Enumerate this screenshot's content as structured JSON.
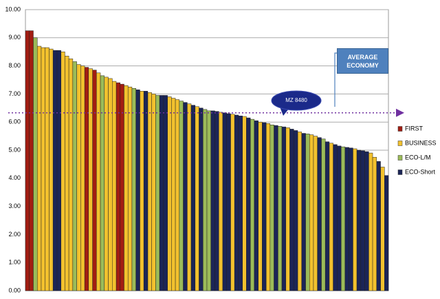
{
  "chart_data": {
    "type": "bar",
    "stacked": true,
    "categories": [
      null,
      null,
      null,
      null,
      null,
      null,
      null,
      null,
      null,
      null,
      null,
      null,
      null,
      null,
      null,
      null,
      null,
      null,
      null,
      null,
      null,
      null,
      null,
      null,
      null,
      null,
      null,
      null,
      null,
      null,
      null,
      null,
      null,
      null,
      null,
      null,
      null,
      null,
      null,
      null,
      null,
      null,
      null,
      null,
      null,
      null,
      null,
      null,
      null,
      null,
      null,
      null,
      null,
      null,
      null,
      null,
      null,
      null,
      null,
      null,
      null,
      null,
      null,
      null,
      null,
      null,
      null,
      null,
      null,
      null,
      null,
      null,
      null,
      null,
      null,
      null,
      null,
      null,
      null,
      null,
      null,
      null,
      null,
      null,
      null,
      null,
      null,
      null,
      null,
      null,
      null,
      null
    ],
    "series": [
      {
        "name": "FIRST",
        "color": "#a11d12",
        "values": [
          9.25,
          9.25,
          null,
          null,
          null,
          null,
          null,
          null,
          null,
          null,
          null,
          null,
          null,
          null,
          null,
          7.95,
          null,
          7.85,
          null,
          null,
          null,
          null,
          null,
          7.4,
          7.35,
          null,
          null,
          null,
          null,
          null,
          null,
          null,
          null,
          null,
          null,
          null,
          null,
          null,
          null,
          null,
          null,
          null,
          null,
          null,
          null,
          null,
          null,
          null,
          null,
          null,
          null,
          null,
          null,
          null,
          null,
          null,
          null,
          null,
          null,
          null,
          null,
          null,
          null,
          null,
          null,
          null,
          null,
          null,
          null,
          null,
          null,
          null,
          null,
          null,
          null,
          null,
          null,
          null,
          null,
          null,
          null,
          null,
          null,
          null,
          null,
          null,
          null,
          null,
          null,
          null,
          null,
          null
        ]
      },
      {
        "name": "BUSINESS",
        "color": "#f2c12e",
        "values": [
          null,
          null,
          null,
          8.7,
          8.65,
          8.65,
          8.6,
          null,
          null,
          8.5,
          8.35,
          8.25,
          null,
          8.05,
          8.0,
          null,
          7.9,
          null,
          7.75,
          null,
          7.6,
          7.55,
          7.45,
          null,
          null,
          7.3,
          7.25,
          null,
          null,
          7.1,
          null,
          7.05,
          7.0,
          null,
          null,
          null,
          6.9,
          6.85,
          6.8,
          null,
          null,
          6.65,
          null,
          6.55,
          null,
          null,
          null,
          null,
          null,
          6.35,
          null,
          null,
          6.28,
          null,
          null,
          6.2,
          null,
          null,
          null,
          6.0,
          null,
          5.95,
          null,
          null,
          null,
          null,
          5.8,
          null,
          null,
          5.65,
          null,
          null,
          5.55,
          5.5,
          null,
          null,
          null,
          5.25,
          null,
          null,
          null,
          null,
          null,
          5.05,
          null,
          null,
          null,
          4.9,
          4.75,
          null,
          4.4,
          null
        ]
      },
      {
        "name": "ECO-L/M",
        "color": "#9bbb59",
        "values": [
          null,
          null,
          9.0,
          null,
          null,
          null,
          null,
          null,
          null,
          null,
          null,
          null,
          8.15,
          null,
          null,
          null,
          null,
          null,
          null,
          7.65,
          null,
          null,
          null,
          null,
          null,
          null,
          null,
          7.2,
          null,
          null,
          null,
          null,
          null,
          6.95,
          null,
          null,
          null,
          null,
          null,
          6.75,
          null,
          null,
          null,
          null,
          null,
          6.45,
          6.4,
          null,
          null,
          null,
          null,
          null,
          null,
          null,
          null,
          null,
          null,
          6.1,
          null,
          null,
          null,
          null,
          5.9,
          null,
          5.85,
          null,
          null,
          null,
          null,
          null,
          null,
          5.58,
          null,
          null,
          null,
          5.4,
          null,
          null,
          null,
          null,
          5.12,
          null,
          null,
          null,
          null,
          null,
          null,
          null,
          null,
          null,
          null,
          null
        ]
      },
      {
        "name": "ECO-Short",
        "color": "#1b2557",
        "values": [
          null,
          null,
          null,
          null,
          null,
          null,
          null,
          8.55,
          8.55,
          null,
          null,
          null,
          null,
          null,
          null,
          null,
          null,
          null,
          null,
          null,
          null,
          null,
          null,
          null,
          null,
          null,
          null,
          null,
          7.15,
          null,
          7.1,
          null,
          null,
          null,
          6.95,
          6.95,
          null,
          null,
          null,
          null,
          6.7,
          null,
          6.6,
          null,
          6.5,
          null,
          null,
          6.4,
          6.38,
          null,
          6.33,
          6.3,
          null,
          6.25,
          6.22,
          null,
          6.15,
          null,
          6.05,
          null,
          5.98,
          null,
          null,
          5.88,
          null,
          5.83,
          null,
          5.75,
          5.7,
          null,
          5.6,
          null,
          null,
          null,
          5.45,
          null,
          5.3,
          null,
          5.2,
          5.15,
          null,
          5.1,
          5.08,
          null,
          5.0,
          4.98,
          4.95,
          null,
          null,
          4.6,
          null,
          4.1
        ]
      }
    ],
    "ylim": [
      0,
      10
    ],
    "yticks": [
      {
        "value": 0,
        "label": "0.00"
      },
      {
        "value": 1,
        "label": "1.00"
      },
      {
        "value": 2,
        "label": "2.00"
      },
      {
        "value": 3,
        "label": "3.00"
      },
      {
        "value": 4,
        "label": "4.00"
      },
      {
        "value": 5,
        "label": "5.00"
      },
      {
        "value": 6,
        "label": "6.00"
      },
      {
        "value": 7,
        "label": "7.00"
      },
      {
        "value": 8,
        "label": "8.00"
      },
      {
        "value": 9,
        "label": "9.00"
      },
      {
        "value": 10,
        "label": "10.00"
      }
    ],
    "grid": true,
    "legend": "right",
    "average_line": 6.33,
    "average_label": "AVERAGE ECONOMY",
    "callout": "MZ 8480"
  }
}
